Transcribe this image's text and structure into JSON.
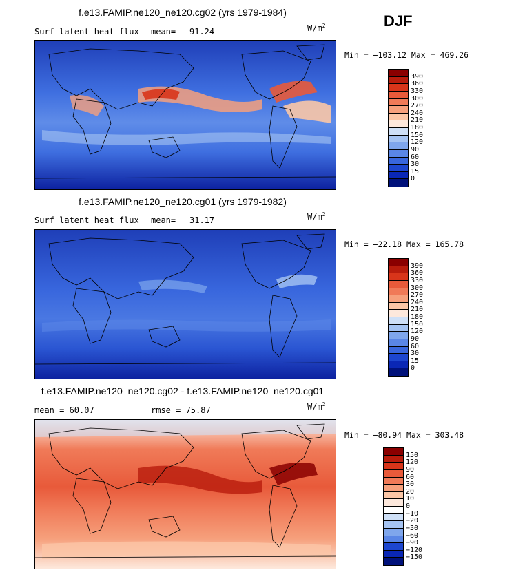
{
  "season": "DJF",
  "units": "W/m",
  "units_exp": "2",
  "panels": [
    {
      "title": "f.e13.FAMIP.ne120_ne120.cg02 (yrs 1979-1984)",
      "left_label": "Surf latent heat flux",
      "mean_label": "mean=",
      "mean_value": "91.24",
      "minmax": "Min = −103.12 Max = 469.26"
    },
    {
      "title": "f.e13.FAMIP.ne120_ne120.cg01 (yrs 1979-1982)",
      "left_label": "Surf latent heat flux",
      "mean_label": "mean=",
      "mean_value": "31.17",
      "minmax": "Min = −22.18 Max = 165.78"
    },
    {
      "title": "f.e13.FAMIP.ne120_ne120.cg02 - f.e13.FAMIP.ne120_ne120.cg01",
      "left_label": "mean =  60.07",
      "rmse_label": "rmse =  75.87",
      "minmax": "Min = −80.94 Max = 303.48"
    }
  ],
  "chart_data": [
    {
      "type": "heatmap",
      "title": "f.e13.FAMIP.ne120_ne120.cg02 (yrs 1979-1984)",
      "variable": "Surf latent heat flux",
      "mean": 91.24,
      "min": -103.12,
      "max": 469.26,
      "colorbar_levels": [
        390,
        360,
        330,
        300,
        270,
        240,
        210,
        180,
        150,
        120,
        90,
        60,
        30,
        15,
        0
      ],
      "colorbar_colors": [
        "#8a0000",
        "#b81c0c",
        "#d8351a",
        "#e85a3a",
        "#f07a58",
        "#f6a07c",
        "#fbc6a6",
        "#fde8dc",
        "#cfe0f7",
        "#a6c4f2",
        "#7fa6ec",
        "#5a86e6",
        "#3866dd",
        "#1d46cf",
        "#0a27b5",
        "#00117a"
      ]
    },
    {
      "type": "heatmap",
      "title": "f.e13.FAMIP.ne120_ne120.cg01 (yrs 1979-1982)",
      "variable": "Surf latent heat flux",
      "mean": 31.17,
      "min": -22.18,
      "max": 165.78,
      "colorbar_levels": [
        390,
        360,
        330,
        300,
        270,
        240,
        210,
        180,
        150,
        120,
        90,
        60,
        30,
        15,
        0
      ],
      "colorbar_colors": [
        "#8a0000",
        "#b81c0c",
        "#d8351a",
        "#e85a3a",
        "#f07a58",
        "#f6a07c",
        "#fbc6a6",
        "#fde8dc",
        "#cfe0f7",
        "#a6c4f2",
        "#7fa6ec",
        "#5a86e6",
        "#3866dd",
        "#1d46cf",
        "#0a27b5",
        "#00117a"
      ]
    },
    {
      "type": "heatmap",
      "title": "f.e13.FAMIP.ne120_ne120.cg02 - f.e13.FAMIP.ne120_ne120.cg01",
      "mean": 60.07,
      "rmse": 75.87,
      "min": -80.94,
      "max": 303.48,
      "colorbar_levels": [
        150,
        120,
        90,
        60,
        30,
        20,
        10,
        0,
        -10,
        -20,
        -30,
        -60,
        -90,
        -120,
        -150
      ],
      "colorbar_colors": [
        "#8a0000",
        "#b81c0c",
        "#d8351a",
        "#e85a3a",
        "#f07a58",
        "#f6a07c",
        "#fbc6a6",
        "#fde8dc",
        "#ffffff",
        "#cfe0f7",
        "#a6c4f2",
        "#7fa6ec",
        "#5a86e6",
        "#1d46cf",
        "#0a27b5",
        "#00117a"
      ]
    }
  ]
}
